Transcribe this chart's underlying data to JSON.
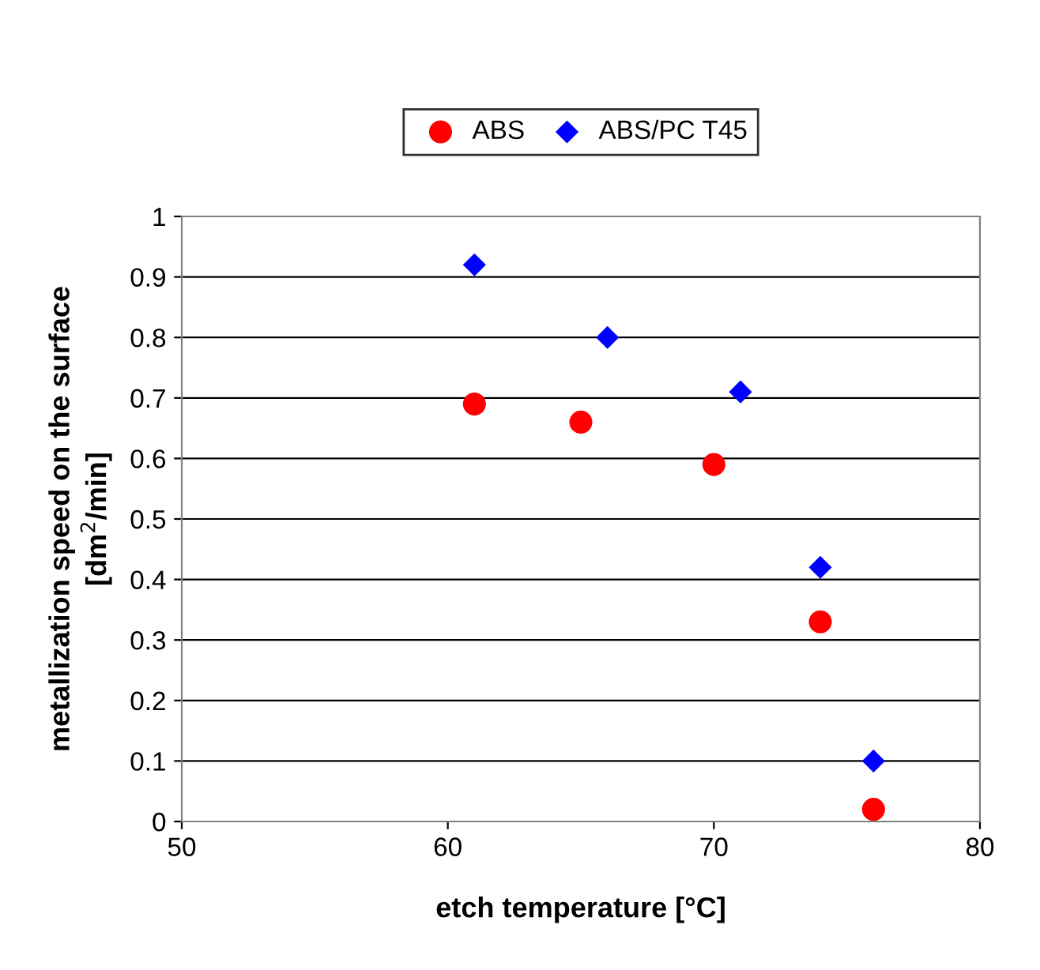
{
  "chart_data": {
    "type": "scatter",
    "xlabel": "etch temperature [°C]",
    "ylabel": "metallization speed on the surface\n[dm$^{2}$/min]",
    "series": [
      {
        "name": "ABS",
        "color": "#ff0000",
        "marker": "circle",
        "x": [
          61,
          65,
          70,
          74,
          76
        ],
        "values": [
          0.69,
          0.66,
          0.59,
          0.33,
          0.02
        ]
      },
      {
        "name": "ABS/PC T45",
        "color": "#0000ff",
        "marker": "diamond",
        "x": [
          61,
          66,
          71,
          74,
          76
        ],
        "values": [
          0.92,
          0.8,
          0.71,
          0.42,
          0.1
        ]
      }
    ],
    "xlim": [
      50,
      80
    ],
    "xticks": [
      50,
      60,
      70,
      80
    ],
    "ylim": [
      0,
      1
    ],
    "yticks": [
      0,
      0.1,
      0.2,
      0.3,
      0.4,
      0.5,
      0.6,
      0.7,
      0.8,
      0.9,
      1
    ],
    "grid": "y",
    "legend": "top"
  }
}
